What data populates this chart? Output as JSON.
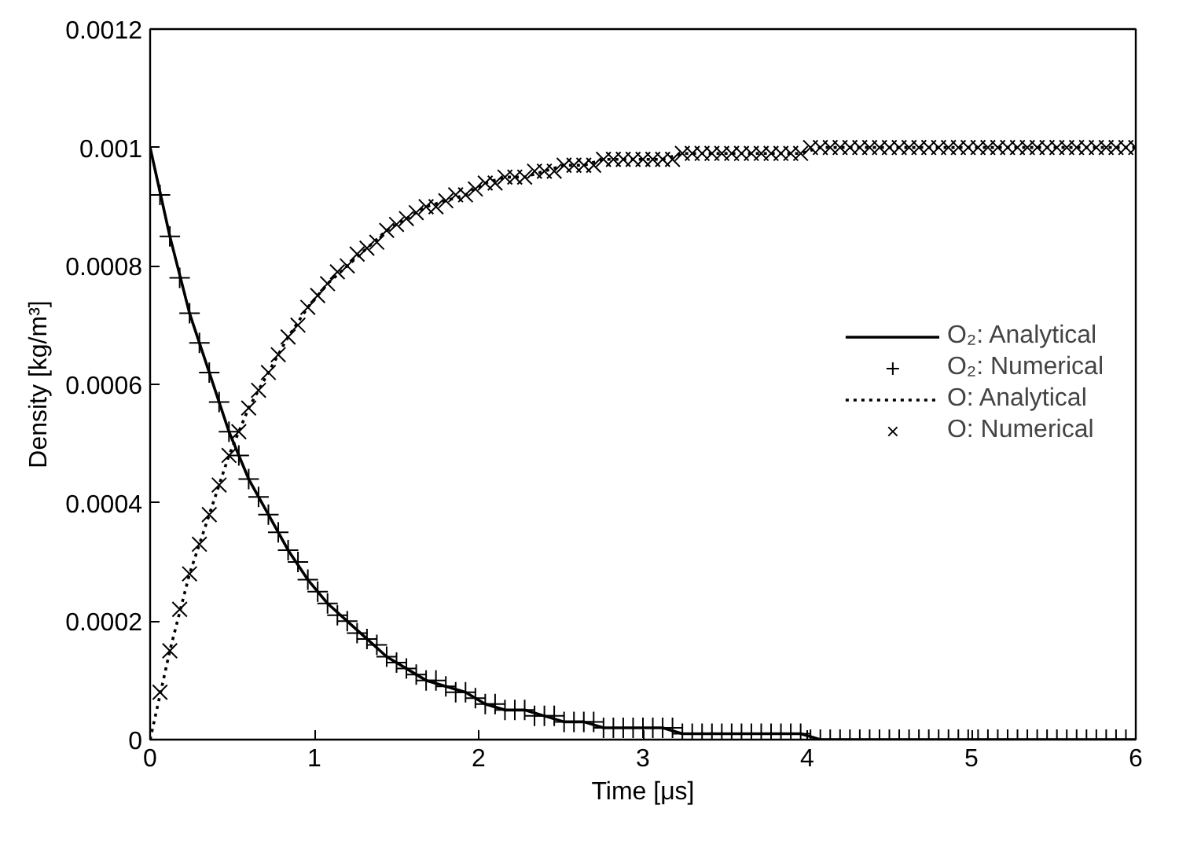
{
  "chart_data": {
    "type": "line",
    "xlabel": "Time [μs]",
    "ylabel": "Density [kg/m³]",
    "xlim": [
      0,
      6
    ],
    "ylim": [
      0,
      0.0012
    ],
    "xticks": [
      0,
      1,
      2,
      3,
      4,
      5,
      6
    ],
    "yticks": [
      0,
      0.0002,
      0.0004,
      0.0006,
      0.0008,
      0.001,
      0.0012
    ],
    "grid": false,
    "legend": "right",
    "series": [
      {
        "name": "O₂: Analytical",
        "line_style": "solid",
        "color": "#000000",
        "x": [
          0,
          0.12,
          0.24,
          0.36,
          0.48,
          0.6,
          0.72,
          0.84,
          0.96,
          1.08,
          1.2,
          1.32,
          1.44,
          1.56,
          1.68,
          1.8,
          1.92,
          2.04,
          2.16,
          2.28,
          2.4,
          2.52,
          2.64,
          2.76,
          2.88,
          3,
          3.12,
          3.24,
          3.36,
          3.48,
          3.6,
          3.72,
          3.84,
          3.96,
          4.08,
          4.2,
          4.32,
          4.44,
          4.56,
          4.68,
          4.8,
          4.92,
          5.04,
          5.16,
          5.28,
          5.4,
          5.52,
          5.64,
          5.76,
          5.88,
          6
        ],
        "values": [
          0.001,
          0.00085,
          0.00072,
          0.00062,
          0.00052,
          0.00044,
          0.00038,
          0.00032,
          0.00027,
          0.00023,
          0.0002,
          0.00017,
          0.00014,
          0.00012,
          0.0001,
          9e-05,
          8e-05,
          6e-05,
          5e-05,
          5e-05,
          4e-05,
          3e-05,
          3e-05,
          2e-05,
          2e-05,
          2e-05,
          2e-05,
          1e-05,
          1e-05,
          1e-05,
          1e-05,
          1e-05,
          1e-05,
          1e-05,
          0,
          0,
          0,
          0,
          0,
          0,
          0,
          0,
          0,
          0,
          0,
          0,
          0,
          0,
          0,
          0,
          0
        ]
      },
      {
        "name": "O₂: Numerical",
        "type": "scatter",
        "marker": "cross",
        "color": "#000000",
        "x": [
          0.06,
          0.12,
          0.18,
          0.24,
          0.3,
          0.36,
          0.42,
          0.48,
          0.54,
          0.6,
          0.66,
          0.72,
          0.78,
          0.84,
          0.9,
          0.96,
          1.02,
          1.08,
          1.14,
          1.2,
          1.26,
          1.32,
          1.38,
          1.44,
          1.5,
          1.56,
          1.62,
          1.68,
          1.74,
          1.8,
          1.86,
          1.92,
          1.98,
          2.04,
          2.1,
          2.16,
          2.22,
          2.28,
          2.34,
          2.4,
          2.46,
          2.52,
          2.58,
          2.64,
          2.7,
          2.76,
          2.82,
          2.88,
          2.94,
          3,
          3.06,
          3.12,
          3.18,
          3.24,
          3.3,
          3.36,
          3.42,
          3.48,
          3.54,
          3.6,
          3.66,
          3.72,
          3.78,
          3.84,
          3.9,
          3.96,
          4.02,
          4.08,
          4.14,
          4.2,
          4.26,
          4.32,
          4.38,
          4.44,
          4.5,
          4.56,
          4.62,
          4.68,
          4.74,
          4.8,
          4.86,
          4.92,
          4.98,
          5.04,
          5.1,
          5.16,
          5.22,
          5.28,
          5.34,
          5.4,
          5.46,
          5.52,
          5.58,
          5.64,
          5.7,
          5.76,
          5.82,
          5.88,
          5.94
        ],
        "values": [
          0.00092,
          0.00085,
          0.00078,
          0.00072,
          0.00067,
          0.00062,
          0.00057,
          0.00052,
          0.00048,
          0.00044,
          0.00041,
          0.00038,
          0.00035,
          0.00032,
          0.0003,
          0.00027,
          0.00025,
          0.00023,
          0.00021,
          0.0002,
          0.00018,
          0.00017,
          0.00016,
          0.00014,
          0.00013,
          0.00012,
          0.00011,
          0.0001,
          0.0001,
          9e-05,
          8e-05,
          8e-05,
          7e-05,
          6e-05,
          6e-05,
          5e-05,
          5e-05,
          5e-05,
          4e-05,
          4e-05,
          4e-05,
          3e-05,
          3e-05,
          3e-05,
          3e-05,
          2e-05,
          2e-05,
          2e-05,
          2e-05,
          2e-05,
          2e-05,
          2e-05,
          2e-05,
          1e-05,
          1e-05,
          1e-05,
          1e-05,
          1e-05,
          1e-05,
          1e-05,
          1e-05,
          1e-05,
          1e-05,
          1e-05,
          1e-05,
          1e-05,
          0,
          0,
          0,
          0,
          0,
          0,
          0,
          0,
          0,
          0,
          0,
          0,
          0,
          0,
          0,
          0,
          0,
          0,
          0,
          0,
          0,
          0,
          0,
          0,
          0,
          0,
          0,
          0,
          0,
          0,
          0,
          0,
          0
        ]
      },
      {
        "name": "O: Analytical",
        "line_style": "dotted",
        "color": "#000000",
        "x": [
          0,
          0.12,
          0.24,
          0.36,
          0.48,
          0.6,
          0.72,
          0.84,
          0.96,
          1.08,
          1.2,
          1.32,
          1.44,
          1.56,
          1.68,
          1.8,
          1.92,
          2.04,
          2.16,
          2.28,
          2.4,
          2.52,
          2.64,
          2.76,
          2.88,
          3,
          3.12,
          3.24,
          3.36,
          3.48,
          3.6,
          3.72,
          3.84,
          3.96,
          4.08,
          4.2,
          4.32,
          4.44,
          4.56,
          4.68,
          4.8,
          4.92,
          5.04,
          5.16,
          5.28,
          5.4,
          5.52,
          5.64,
          5.76,
          5.88,
          6
        ],
        "values": [
          0,
          0.00015,
          0.00028,
          0.00038,
          0.00048,
          0.00056,
          0.00062,
          0.00068,
          0.00073,
          0.00077,
          0.0008,
          0.00083,
          0.00086,
          0.00088,
          0.0009,
          0.00091,
          0.00092,
          0.00094,
          0.00095,
          0.00095,
          0.00096,
          0.00097,
          0.00097,
          0.00098,
          0.00098,
          0.00098,
          0.00098,
          0.00099,
          0.00099,
          0.00099,
          0.00099,
          0.00099,
          0.00099,
          0.00099,
          0.001,
          0.001,
          0.001,
          0.001,
          0.001,
          0.001,
          0.001,
          0.001,
          0.001,
          0.001,
          0.001,
          0.001,
          0.001,
          0.001,
          0.001,
          0.001,
          0.001
        ]
      },
      {
        "name": "O: Numerical",
        "type": "scatter",
        "marker": "x",
        "color": "#000000",
        "x": [
          0.06,
          0.12,
          0.18,
          0.24,
          0.3,
          0.36,
          0.42,
          0.48,
          0.54,
          0.6,
          0.66,
          0.72,
          0.78,
          0.84,
          0.9,
          0.96,
          1.02,
          1.08,
          1.14,
          1.2,
          1.26,
          1.32,
          1.38,
          1.44,
          1.5,
          1.56,
          1.62,
          1.68,
          1.74,
          1.8,
          1.86,
          1.92,
          1.98,
          2.04,
          2.1,
          2.16,
          2.22,
          2.28,
          2.34,
          2.4,
          2.46,
          2.52,
          2.58,
          2.64,
          2.7,
          2.76,
          2.82,
          2.88,
          2.94,
          3,
          3.06,
          3.12,
          3.18,
          3.24,
          3.3,
          3.36,
          3.42,
          3.48,
          3.54,
          3.6,
          3.66,
          3.72,
          3.78,
          3.84,
          3.9,
          3.96,
          4.02,
          4.08,
          4.14,
          4.2,
          4.26,
          4.32,
          4.38,
          4.44,
          4.5,
          4.56,
          4.62,
          4.68,
          4.74,
          4.8,
          4.86,
          4.92,
          4.98,
          5.04,
          5.1,
          5.16,
          5.22,
          5.28,
          5.34,
          5.4,
          5.46,
          5.52,
          5.58,
          5.64,
          5.7,
          5.76,
          5.82,
          5.88,
          5.94,
          6
        ],
        "values": [
          8e-05,
          0.00015,
          0.00022,
          0.00028,
          0.00033,
          0.00038,
          0.00043,
          0.00048,
          0.00052,
          0.00056,
          0.00059,
          0.00062,
          0.00065,
          0.00068,
          0.0007,
          0.00073,
          0.00075,
          0.00077,
          0.00079,
          0.0008,
          0.00082,
          0.00083,
          0.00084,
          0.00086,
          0.00087,
          0.00088,
          0.00089,
          0.0009,
          0.0009,
          0.00091,
          0.00092,
          0.00092,
          0.00093,
          0.00094,
          0.00094,
          0.00095,
          0.00095,
          0.00095,
          0.00096,
          0.00096,
          0.00096,
          0.00097,
          0.00097,
          0.00097,
          0.00097,
          0.00098,
          0.00098,
          0.00098,
          0.00098,
          0.00098,
          0.00098,
          0.00098,
          0.00098,
          0.00099,
          0.00099,
          0.00099,
          0.00099,
          0.00099,
          0.00099,
          0.00099,
          0.00099,
          0.00099,
          0.00099,
          0.00099,
          0.00099,
          0.00099,
          0.001,
          0.001,
          0.001,
          0.001,
          0.001,
          0.001,
          0.001,
          0.001,
          0.001,
          0.001,
          0.001,
          0.001,
          0.001,
          0.001,
          0.001,
          0.001,
          0.001,
          0.001,
          0.001,
          0.001,
          0.001,
          0.001,
          0.001,
          0.001,
          0.001,
          0.001,
          0.001,
          0.001,
          0.001,
          0.001,
          0.001,
          0.001,
          0.001,
          0.001
        ]
      }
    ]
  }
}
